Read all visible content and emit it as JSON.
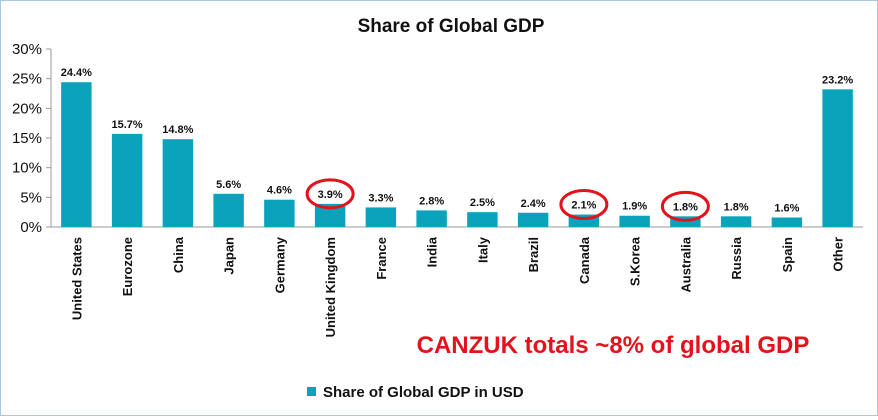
{
  "chart_data": {
    "type": "bar",
    "title": "Share of Global GDP",
    "categories": [
      "United States",
      "Eurozone",
      "China",
      "Japan",
      "Germany",
      "United Kingdom",
      "France",
      "India",
      "Italy",
      "Brazil",
      "Canada",
      "S.Korea",
      "Australia",
      "Russia",
      "Spain",
      "Other"
    ],
    "series": [
      {
        "name": "Share of Global GDP in USD",
        "values": [
          24.4,
          15.7,
          14.8,
          5.6,
          4.6,
          3.9,
          3.3,
          2.8,
          2.5,
          2.4,
          2.1,
          1.9,
          1.8,
          1.8,
          1.6,
          23.2
        ],
        "data_labels": [
          "24.4%",
          "15.7%",
          "14.8%",
          "5.6%",
          "4.6%",
          "3.9%",
          "3.3%",
          "2.8%",
          "2.5%",
          "2.4%",
          "2.1%",
          "1.9%",
          "1.8%",
          "1.8%",
          "1.6%",
          "23.2%"
        ]
      }
    ],
    "ylim": [
      0,
      30
    ],
    "yticks": [
      0,
      5,
      10,
      15,
      20,
      25,
      30
    ],
    "ytick_labels": [
      "0%",
      "5%",
      "10%",
      "15%",
      "20%",
      "25%",
      "30%"
    ],
    "grid": false,
    "legend_position": "bottom",
    "highlighted_categories": [
      "United Kingdom",
      "Canada",
      "Australia"
    ],
    "annotation": "CANZUK totals ~8% of global GDP",
    "colors": {
      "bar": "#0aa3bb",
      "highlight_circle": "#e3121c",
      "annotation": "#e3121c",
      "text": "#111111",
      "axis": "#9a9a9a"
    }
  }
}
